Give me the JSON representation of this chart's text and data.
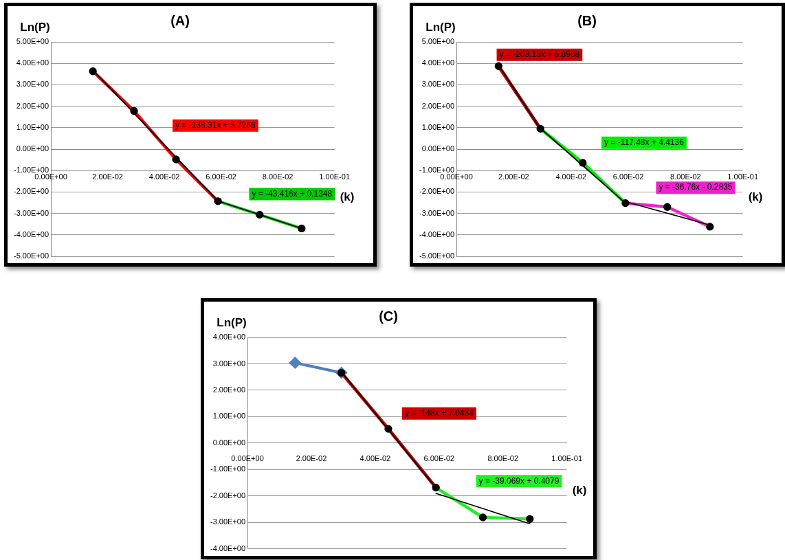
{
  "chart_data": [
    {
      "type": "line",
      "title": "(A)",
      "xlabel": "(k)",
      "ylabel": "Ln(P)",
      "grid": "y",
      "legend": false,
      "xlim": [
        0,
        0.1
      ],
      "xticks": [
        {
          "value": 0,
          "label": "0.00E+00"
        },
        {
          "value": 0.02,
          "label": "2.00E-02"
        },
        {
          "value": 0.04,
          "label": "4.00E-02"
        },
        {
          "value": 0.06,
          "label": "6.00E-02"
        },
        {
          "value": 0.08,
          "label": "8.00E-02"
        },
        {
          "value": 0.1,
          "label": "1.00E-01"
        }
      ],
      "ylim": [
        -5,
        5
      ],
      "yticks": [
        {
          "value": -5,
          "label": "-5.00E+00"
        },
        {
          "value": -4,
          "label": "-4.00E+00"
        },
        {
          "value": -3,
          "label": "-3.00E+00"
        },
        {
          "value": -2,
          "label": "-2.00E+00"
        },
        {
          "value": -1,
          "label": "-1.00E+00"
        },
        {
          "value": 0,
          "label": "0.00E+00"
        },
        {
          "value": 1,
          "label": "1.00E+00"
        },
        {
          "value": 2,
          "label": "2.00E+00"
        },
        {
          "value": 3,
          "label": "3.00E+00"
        },
        {
          "value": 4,
          "label": "4.00E+00"
        },
        {
          "value": 5,
          "label": "5.00E+00"
        }
      ],
      "series": [
        {
          "type": "line",
          "color": "#ff0000",
          "marker": "none",
          "x": [
            0.0148,
            0.0293,
            0.0441,
            0.0589
          ],
          "values": [
            3.63,
            1.78,
            -0.48,
            -2.43
          ]
        },
        {
          "type": "line",
          "color": "#00cc00",
          "marker": "none",
          "x": [
            0.0589,
            0.0736,
            0.0884
          ],
          "values": [
            -2.43,
            -3.06,
            -3.7
          ]
        },
        {
          "type": "line",
          "color": "#000000",
          "marker": "none",
          "x": [
            0.0148,
            0.0589
          ],
          "values": [
            3.68,
            -2.42
          ]
        },
        {
          "type": "line",
          "color": "#000000",
          "marker": "none",
          "x": [
            0.0589,
            0.0884
          ],
          "values": [
            -2.42,
            -3.7
          ]
        },
        {
          "type": "scatter",
          "color": "#000000",
          "marker": "circle",
          "x": [
            0.0148,
            0.0293,
            0.0441,
            0.0589,
            0.0736,
            0.0884
          ],
          "values": [
            3.63,
            1.78,
            -0.48,
            -2.43,
            -3.06,
            -3.7
          ]
        }
      ],
      "annotations": [
        "y = -138.31x + 5.7266",
        "y = -43.416x + 0.1348"
      ]
    },
    {
      "type": "line",
      "title": "(B)",
      "xlabel": "(k)",
      "ylabel": "Ln(P)",
      "grid": "y",
      "legend": false,
      "xlim": [
        0,
        0.1
      ],
      "xticks": [
        {
          "value": 0,
          "label": "0.00E+00"
        },
        {
          "value": 0.02,
          "label": "2.00E-02"
        },
        {
          "value": 0.04,
          "label": "4.00E-02"
        },
        {
          "value": 0.06,
          "label": "6.00E-02"
        },
        {
          "value": 0.08,
          "label": "8.00E-02"
        },
        {
          "value": 0.1,
          "label": "1.00E-01"
        }
      ],
      "ylim": [
        -5,
        5
      ],
      "yticks": [
        {
          "value": -5,
          "label": "-5.00E+00"
        },
        {
          "value": -4,
          "label": "-4.00E+00"
        },
        {
          "value": -3,
          "label": "-3.00E+00"
        },
        {
          "value": -2,
          "label": "-2.00E+00"
        },
        {
          "value": -1,
          "label": "-1.00E+00"
        },
        {
          "value": 0,
          "label": "0.00E+00"
        },
        {
          "value": 1,
          "label": "1.00E+00"
        },
        {
          "value": 2,
          "label": "2.00E+00"
        },
        {
          "value": 3,
          "label": "3.00E+00"
        },
        {
          "value": 4,
          "label": "4.00E+00"
        },
        {
          "value": 5,
          "label": "5.00E+00"
        }
      ],
      "series": [
        {
          "type": "line",
          "color": "#cc0000",
          "marker": "none",
          "x": [
            0.0147,
            0.0293
          ],
          "values": [
            3.87,
            0.95
          ]
        },
        {
          "type": "line",
          "color": "#00ee00",
          "marker": "none",
          "x": [
            0.0293,
            0.0441,
            0.059
          ],
          "values": [
            0.95,
            -0.64,
            -2.52
          ]
        },
        {
          "type": "line",
          "color": "#ee22cc",
          "marker": "none",
          "x": [
            0.059,
            0.0736,
            0.0885
          ],
          "values": [
            -2.52,
            -2.7,
            -3.62
          ]
        },
        {
          "type": "line",
          "color": "#000000",
          "marker": "none",
          "x": [
            0.0147,
            0.0293
          ],
          "values": [
            3.91,
            0.94
          ]
        },
        {
          "type": "line",
          "color": "#000000",
          "marker": "none",
          "x": [
            0.0293,
            0.059
          ],
          "values": [
            0.97,
            -2.52
          ]
        },
        {
          "type": "line",
          "color": "#000000",
          "marker": "none",
          "x": [
            0.059,
            0.0885
          ],
          "values": [
            -2.45,
            -3.54
          ]
        },
        {
          "type": "scatter",
          "color": "#000000",
          "marker": "circle",
          "x": [
            0.0147,
            0.0293,
            0.0441,
            0.059,
            0.0736,
            0.0885
          ],
          "values": [
            3.87,
            0.95,
            -0.64,
            -2.52,
            -2.7,
            -3.62
          ]
        }
      ],
      "annotations": [
        "y = -203.18x + 6.8968",
        "y = -117.48x + 4.4136",
        "y = -36.76x - 0.2835"
      ]
    },
    {
      "type": "line",
      "title": "(C)",
      "xlabel": "(k)",
      "ylabel": "Ln(P)",
      "grid": "y",
      "legend": false,
      "xlim": [
        0,
        0.1
      ],
      "xticks": [
        {
          "value": 0,
          "label": "0.00E+00"
        },
        {
          "value": 0.02,
          "label": "2.00E-02"
        },
        {
          "value": 0.04,
          "label": "4.00E-02"
        },
        {
          "value": 0.06,
          "label": "6.00E-02"
        },
        {
          "value": 0.08,
          "label": "8.00E-02"
        },
        {
          "value": 0.1,
          "label": "1.00E-01"
        }
      ],
      "ylim": [
        -4,
        4
      ],
      "yticks": [
        {
          "value": -4,
          "label": "-4.00E+00"
        },
        {
          "value": -3,
          "label": "-3.00E+00"
        },
        {
          "value": -2,
          "label": "-2.00E+00"
        },
        {
          "value": -1,
          "label": "-1.00E+00"
        },
        {
          "value": 0,
          "label": "0.00E+00"
        },
        {
          "value": 1,
          "label": "1.00E+00"
        },
        {
          "value": 2,
          "label": "2.00E+00"
        },
        {
          "value": 3,
          "label": "3.00E+00"
        },
        {
          "value": 4,
          "label": "4.00E+00"
        }
      ],
      "series": [
        {
          "type": "line",
          "color": "#cc0000",
          "marker": "none",
          "x": [
            0.0294,
            0.0441,
            0.059
          ],
          "values": [
            2.66,
            0.54,
            -1.68
          ]
        },
        {
          "type": "line",
          "color": "#22ee22",
          "marker": "none",
          "x": [
            0.059,
            0.0737,
            0.0884
          ],
          "values": [
            -1.68,
            -2.81,
            -2.87
          ]
        },
        {
          "type": "line",
          "color": "#4f81bd",
          "marker": "diamond",
          "x": [
            0.0149,
            0.0294
          ],
          "values": [
            3.04,
            2.66
          ]
        },
        {
          "type": "line",
          "color": "#000000",
          "marker": "none",
          "x": [
            0.0294,
            0.059
          ],
          "values": [
            2.69,
            -1.69
          ]
        },
        {
          "type": "line",
          "color": "#000000",
          "marker": "none",
          "x": [
            0.059,
            0.0884
          ],
          "values": [
            -1.9,
            -3.05
          ]
        },
        {
          "type": "scatter",
          "color": "#000000",
          "marker": "circle",
          "x": [
            0.0294,
            0.0441,
            0.059,
            0.0737,
            0.0884
          ],
          "values": [
            2.66,
            0.54,
            -1.68,
            -2.81,
            -2.87
          ]
        }
      ],
      "annotations": [
        "y = -148x + 7.0434",
        "y = -39.069x + 0.4079"
      ]
    }
  ]
}
